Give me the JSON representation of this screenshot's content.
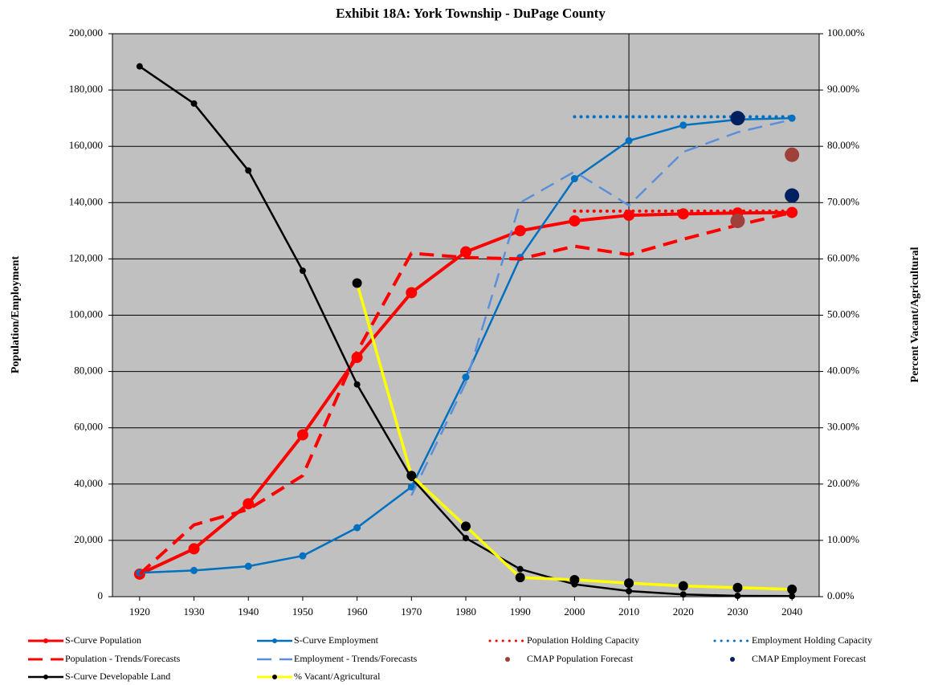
{
  "chart_data": {
    "type": "line",
    "title": "Exhibit 18A:   York Township - DuPage County",
    "y_label": "Population/Employment",
    "y2_label": "Percent Vacant/Agricultural",
    "x": [
      1920,
      1930,
      1940,
      1950,
      1960,
      1970,
      1980,
      1990,
      2000,
      2010,
      2020,
      2030,
      2040
    ],
    "xlim": [
      1915,
      2045
    ],
    "xticks": [
      1920,
      1930,
      1940,
      1950,
      1960,
      1970,
      1980,
      1990,
      2000,
      2010,
      2020,
      2030,
      2040
    ],
    "ylim": [
      0,
      200000
    ],
    "yticks": [
      {
        "value": 0,
        "label": "0"
      },
      {
        "value": 20000,
        "label": "20,000"
      },
      {
        "value": 40000,
        "label": "40,000"
      },
      {
        "value": 60000,
        "label": "60,000"
      },
      {
        "value": 80000,
        "label": "80,000"
      },
      {
        "value": 100000,
        "label": "100,000"
      },
      {
        "value": 120000,
        "label": "120,000"
      },
      {
        "value": 140000,
        "label": "140,000"
      },
      {
        "value": 160000,
        "label": "160,000"
      },
      {
        "value": 180000,
        "label": "180,000"
      },
      {
        "value": 200000,
        "label": "200,000"
      }
    ],
    "y2lim": [
      0,
      100
    ],
    "y2ticks": [
      {
        "value": 0,
        "label": "0.00%"
      },
      {
        "value": 10,
        "label": "10.00%"
      },
      {
        "value": 20,
        "label": "20.00%"
      },
      {
        "value": 30,
        "label": "30.00%"
      },
      {
        "value": 40,
        "label": "40.00%"
      },
      {
        "value": 50,
        "label": "50.00%"
      },
      {
        "value": 60,
        "label": "60.00%"
      },
      {
        "value": 70,
        "label": "70.00%"
      },
      {
        "value": 80,
        "label": "80.00%"
      },
      {
        "value": 90,
        "label": "90.00%"
      },
      {
        "value": 100,
        "label": "100.00%"
      }
    ],
    "grid": true,
    "reference_x": 2010,
    "legend": "bottom",
    "series": [
      {
        "name": "S-Curve Population",
        "color": "#ff0000",
        "dash": "solid",
        "line_width": 4,
        "marker_size": 7,
        "marker_color": "#ff0000",
        "values": [
          8000,
          17000,
          33000,
          57500,
          85000,
          108000,
          122500,
          130000,
          133500,
          135500,
          136000,
          136300,
          136500
        ]
      },
      {
        "name": "S-Curve Employment",
        "color": "#0070c0",
        "dash": "solid",
        "line_width": 2.5,
        "marker_size": 4.5,
        "marker_color": "#0070c0",
        "values": [
          8500,
          9300,
          10800,
          14500,
          24500,
          39000,
          78000,
          120500,
          148500,
          162000,
          167500,
          169500,
          170000
        ]
      },
      {
        "name": "Population Holding Capacity",
        "color": "#ff0000",
        "dash": "dotted",
        "line_width": 4,
        "marker_size": 0,
        "marker_color": "#ff0000",
        "values": [
          null,
          null,
          null,
          null,
          null,
          null,
          null,
          null,
          137000,
          137000,
          137000,
          137000,
          137000
        ]
      },
      {
        "name": "Employment Holding Capacity",
        "color": "#0070c0",
        "dash": "dotted",
        "line_width": 4,
        "marker_size": 0,
        "marker_color": "#0070c0",
        "values": [
          null,
          null,
          null,
          null,
          null,
          null,
          null,
          null,
          170500,
          170500,
          170500,
          170500,
          170500
        ]
      },
      {
        "name": "Population - Trends/Forecasts",
        "color": "#ff0000",
        "dash": "dashed",
        "line_width": 4,
        "marker_size": 0,
        "marker_color": "#ff0000",
        "values": [
          8000,
          25500,
          31000,
          43000,
          87000,
          122000,
          120500,
          120000,
          124500,
          121500,
          127000,
          132000,
          136500
        ]
      },
      {
        "name": "Employment - Trends/Forecasts",
        "color": "#5b8fd9",
        "dash": "dashed",
        "line_width": 2.5,
        "marker_size": 0,
        "marker_color": "#5b8fd9",
        "values": [
          null,
          null,
          null,
          null,
          null,
          36000,
          76000,
          140000,
          151000,
          139000,
          158000,
          165000,
          169500
        ]
      },
      {
        "name": "CMAP Population Forecast",
        "color": "#a0403a",
        "dash": "none",
        "line_width": 0,
        "marker_size": 9,
        "marker_color": "#a0403a",
        "values": [
          null,
          null,
          null,
          null,
          null,
          null,
          null,
          null,
          null,
          null,
          null,
          133500,
          157000
        ]
      },
      {
        "name": "CMAP Employment Forecast",
        "color": "#002060",
        "dash": "none",
        "line_width": 0,
        "marker_size": 9,
        "marker_color": "#002060",
        "values": [
          null,
          null,
          null,
          null,
          null,
          null,
          null,
          null,
          null,
          null,
          null,
          170000,
          142500
        ]
      },
      {
        "name": "S-Curve Developable Land",
        "color": "#000000",
        "dash": "solid",
        "line_width": 2.5,
        "marker_size": 4,
        "marker_color": "#000000",
        "axis": "y2",
        "values": [
          94.2,
          87.6,
          75.7,
          57.9,
          37.7,
          21.1,
          10.4,
          4.9,
          2.2,
          1.0,
          0.4,
          0.15,
          0.1
        ]
      },
      {
        "name": "% Vacant/Agricultural",
        "color": "#ffff00",
        "dash": "solid",
        "line_width": 3.5,
        "marker_size": 6,
        "marker_color": "#000000",
        "axis": "y2",
        "values": [
          null,
          null,
          null,
          null,
          55.7,
          21.5,
          12.5,
          3.4,
          3.0,
          2.4,
          1.9,
          1.6,
          1.3
        ]
      }
    ]
  }
}
